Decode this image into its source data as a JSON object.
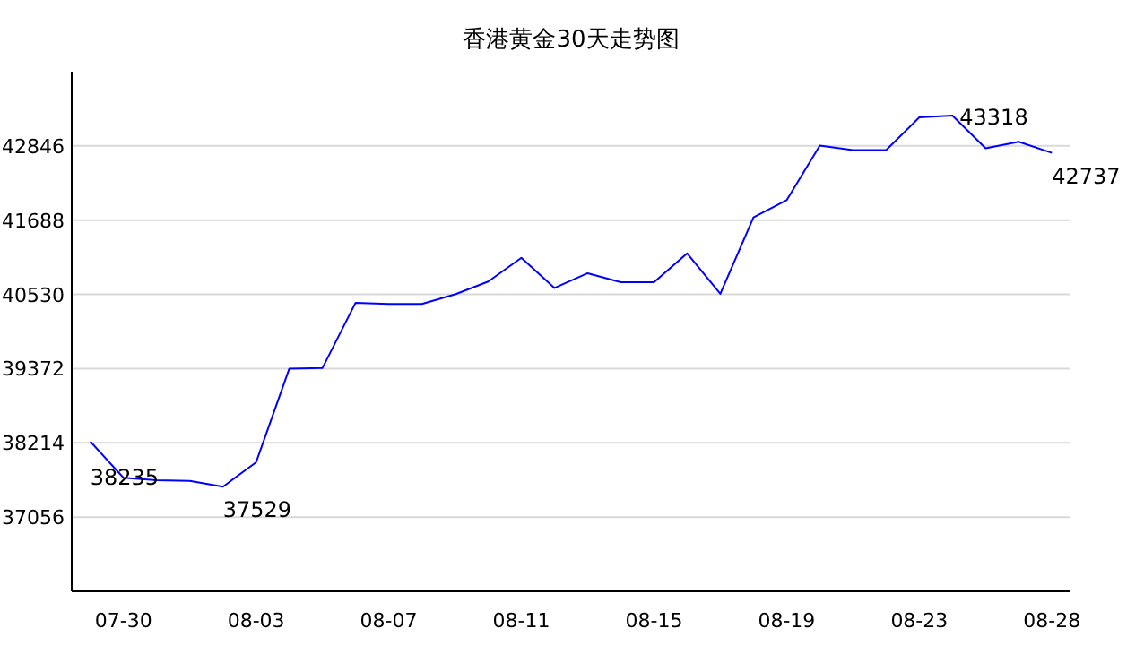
{
  "chart_data": {
    "type": "line",
    "title": "香港黄金30天走势图",
    "categories": [
      null,
      "07-30",
      null,
      null,
      null,
      "08-03",
      null,
      null,
      null,
      "08-07",
      null,
      null,
      null,
      "08-11",
      null,
      null,
      null,
      "08-15",
      null,
      null,
      null,
      "08-19",
      null,
      null,
      null,
      "08-23",
      null,
      null,
      null,
      "08-28"
    ],
    "series": [
      {
        "color": "#0000ff",
        "values": [
          38235,
          37670,
          37630,
          37620,
          37529,
          37910,
          39370,
          39380,
          40400,
          40380,
          40380,
          40530,
          40730,
          41100,
          40630,
          40860,
          40720,
          40720,
          41170,
          40540,
          41730,
          42000,
          42850,
          42780,
          42780,
          43290,
          43318,
          42810,
          42910,
          42737
        ],
        "value_labels": [
          "38235",
          null,
          null,
          null,
          "37529",
          null,
          null,
          null,
          null,
          null,
          null,
          null,
          null,
          null,
          null,
          null,
          null,
          null,
          null,
          null,
          null,
          null,
          null,
          null,
          null,
          null,
          "43318",
          null,
          null,
          "42737"
        ]
      }
    ],
    "ylim": [
      35898,
      44004
    ],
    "yticks": [
      37056,
      38214,
      39372,
      40530,
      41688,
      42846
    ],
    "grid": "y",
    "marker": "none",
    "line_style": "solid"
  }
}
